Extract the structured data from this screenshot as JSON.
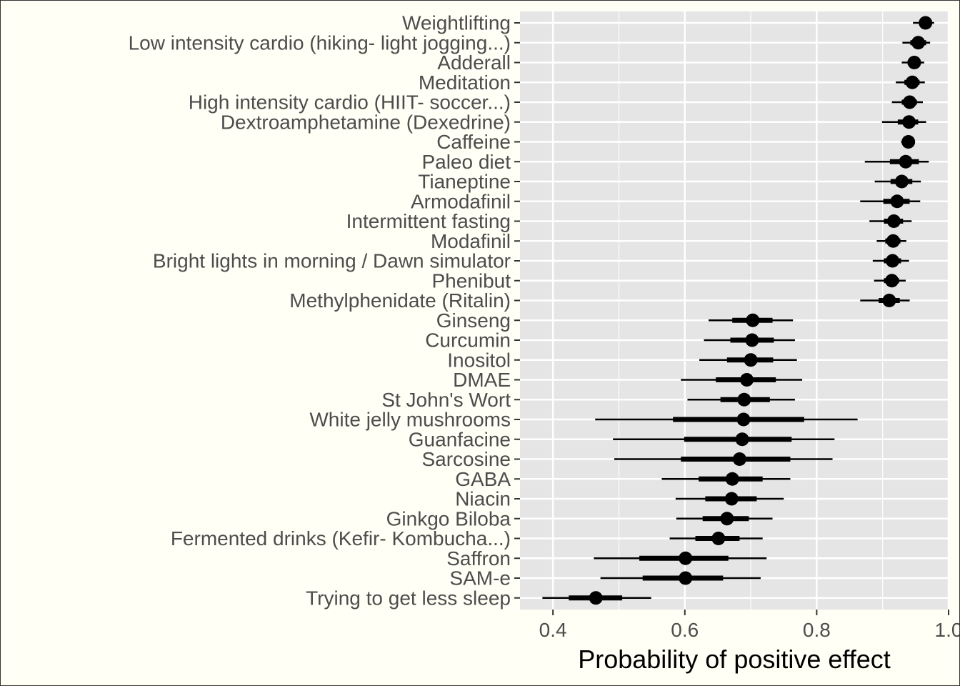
{
  "chart_data": {
    "type": "pointrange",
    "xlabel": "Probability of positive effect",
    "ylabel": "",
    "xlim": [
      0.35,
      1.0
    ],
    "x_ticks": [
      0.4,
      0.6,
      0.8,
      1.0
    ],
    "x_tick_labels": [
      "0.4",
      "0.6",
      "0.8",
      "1.0"
    ],
    "grid": true,
    "colors": {
      "panel": "#e5e5e5",
      "grid": "#ffffff",
      "marks": "#000000",
      "text": "#4d4d4d",
      "background": "#fffff5"
    },
    "items": [
      {
        "label": "Weightlifting",
        "estimate": 0.965,
        "inner": [
          0.958,
          0.972
        ],
        "outer": [
          0.946,
          0.978
        ]
      },
      {
        "label": "Low intensity cardio (hiking- light jogging...)",
        "estimate": 0.954,
        "inner": [
          0.942,
          0.966
        ],
        "outer": [
          0.93,
          0.972
        ]
      },
      {
        "label": "Adderall",
        "estimate": 0.948,
        "inner": [
          0.938,
          0.957
        ],
        "outer": [
          0.929,
          0.963
        ]
      },
      {
        "label": "Meditation",
        "estimate": 0.945,
        "inner": [
          0.933,
          0.956
        ],
        "outer": [
          0.92,
          0.964
        ]
      },
      {
        "label": "High intensity cardio (HIIT- soccer...)",
        "estimate": 0.941,
        "inner": [
          0.929,
          0.952
        ],
        "outer": [
          0.914,
          0.961
        ]
      },
      {
        "label": "Dextroamphetamine (Dexedrine)",
        "estimate": 0.94,
        "inner": [
          0.923,
          0.954
        ],
        "outer": [
          0.899,
          0.966
        ]
      },
      {
        "label": "Caffeine",
        "estimate": 0.939,
        "inner": [
          0.933,
          0.945
        ],
        "outer": [
          0.928,
          0.949
        ]
      },
      {
        "label": "Paleo diet",
        "estimate": 0.935,
        "inner": [
          0.911,
          0.955
        ],
        "outer": [
          0.873,
          0.97
        ]
      },
      {
        "label": "Tianeptine",
        "estimate": 0.929,
        "inner": [
          0.912,
          0.945
        ],
        "outer": [
          0.888,
          0.958
        ]
      },
      {
        "label": "Armodafinil",
        "estimate": 0.922,
        "inner": [
          0.901,
          0.941
        ],
        "outer": [
          0.866,
          0.957
        ]
      },
      {
        "label": "Intermittent fasting",
        "estimate": 0.917,
        "inner": [
          0.902,
          0.931
        ],
        "outer": [
          0.88,
          0.944
        ]
      },
      {
        "label": "Modafinil",
        "estimate": 0.916,
        "inner": [
          0.904,
          0.927
        ],
        "outer": [
          0.891,
          0.936
        ]
      },
      {
        "label": "Bright lights in morning / Dawn simulator",
        "estimate": 0.915,
        "inner": [
          0.902,
          0.928
        ],
        "outer": [
          0.885,
          0.94
        ]
      },
      {
        "label": "Phenibut",
        "estimate": 0.914,
        "inner": [
          0.902,
          0.925
        ],
        "outer": [
          0.887,
          0.935
        ]
      },
      {
        "label": "Methylphenidate (Ritalin)",
        "estimate": 0.91,
        "inner": [
          0.894,
          0.926
        ],
        "outer": [
          0.866,
          0.941
        ]
      },
      {
        "label": "Ginseng",
        "estimate": 0.703,
        "inner": [
          0.672,
          0.733
        ],
        "outer": [
          0.636,
          0.764
        ]
      },
      {
        "label": "Curcumin",
        "estimate": 0.702,
        "inner": [
          0.669,
          0.735
        ],
        "outer": [
          0.629,
          0.767
        ]
      },
      {
        "label": "Inositol",
        "estimate": 0.7,
        "inner": [
          0.664,
          0.734
        ],
        "outer": [
          0.622,
          0.77
        ]
      },
      {
        "label": "DMAE",
        "estimate": 0.694,
        "inner": [
          0.647,
          0.738
        ],
        "outer": [
          0.594,
          0.778
        ]
      },
      {
        "label": "St John's Wort",
        "estimate": 0.69,
        "inner": [
          0.654,
          0.729
        ],
        "outer": [
          0.604,
          0.767
        ]
      },
      {
        "label": "White jelly mushrooms",
        "estimate": 0.689,
        "inner": [
          0.582,
          0.781
        ],
        "outer": [
          0.464,
          0.862
        ]
      },
      {
        "label": "Guanfacine",
        "estimate": 0.687,
        "inner": [
          0.599,
          0.762
        ],
        "outer": [
          0.491,
          0.827
        ]
      },
      {
        "label": "Sarcosine",
        "estimate": 0.683,
        "inner": [
          0.594,
          0.76
        ],
        "outer": [
          0.493,
          0.824
        ]
      },
      {
        "label": "GABA",
        "estimate": 0.672,
        "inner": [
          0.621,
          0.718
        ],
        "outer": [
          0.565,
          0.76
        ]
      },
      {
        "label": "Niacin",
        "estimate": 0.671,
        "inner": [
          0.631,
          0.709
        ],
        "outer": [
          0.586,
          0.75
        ]
      },
      {
        "label": "Ginkgo Biloba",
        "estimate": 0.664,
        "inner": [
          0.627,
          0.697
        ],
        "outer": [
          0.587,
          0.733
        ]
      },
      {
        "label": "Fermented drinks (Kefir- Kombucha...)",
        "estimate": 0.651,
        "inner": [
          0.616,
          0.683
        ],
        "outer": [
          0.577,
          0.718
        ]
      },
      {
        "label": "Saffron",
        "estimate": 0.601,
        "inner": [
          0.531,
          0.666
        ],
        "outer": [
          0.462,
          0.724
        ]
      },
      {
        "label": "SAM-e",
        "estimate": 0.601,
        "inner": [
          0.536,
          0.658
        ],
        "outer": [
          0.472,
          0.715
        ]
      },
      {
        "label": "Trying to get less sleep",
        "estimate": 0.465,
        "inner": [
          0.424,
          0.505
        ],
        "outer": [
          0.384,
          0.549
        ]
      }
    ]
  }
}
